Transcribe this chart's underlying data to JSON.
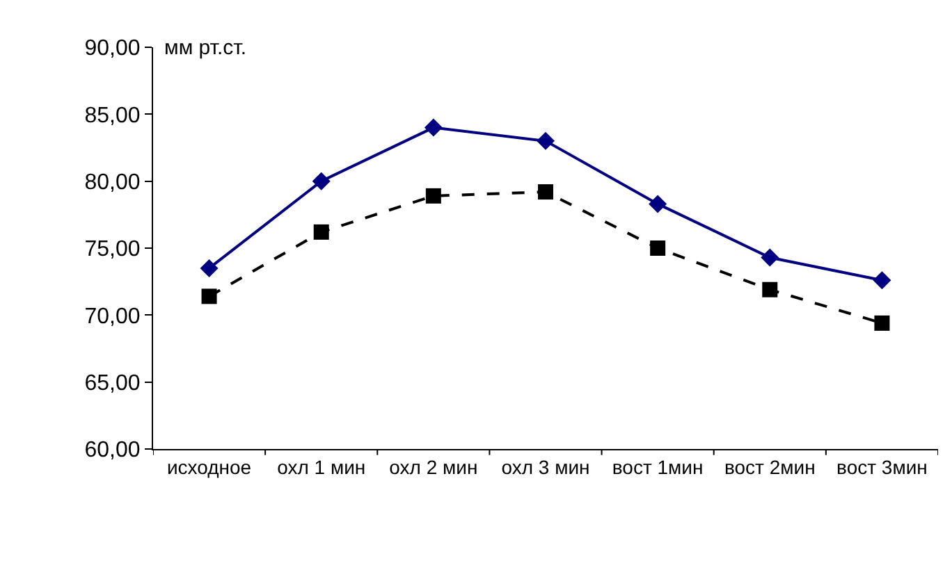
{
  "chart_data": {
    "type": "line",
    "ylabel": "мм рт.ст.",
    "categories": [
      "исходное",
      "охл 1 мин",
      "охл 2 мин",
      "охл 3 мин",
      "вост 1мин",
      "вост 2мин",
      "вост 3мин"
    ],
    "series": [
      {
        "color": "#000080",
        "values": [
          73.5,
          80.0,
          84.0,
          83.0,
          78.3,
          74.3,
          72.6
        ],
        "marker": "diamond",
        "line_style": "solid"
      },
      {
        "color": "#000000",
        "values": [
          71.4,
          76.2,
          78.9,
          79.2,
          75.0,
          71.9,
          69.4
        ],
        "marker": "square",
        "line_style": "dashed"
      }
    ],
    "ylim": [
      60,
      90
    ],
    "yticks": [
      {
        "value": 60,
        "label": "60,00"
      },
      {
        "value": 65,
        "label": "65,00"
      },
      {
        "value": 70,
        "label": "70,00"
      },
      {
        "value": 75,
        "label": "75,00"
      },
      {
        "value": 80,
        "label": "80,00"
      },
      {
        "value": 85,
        "label": "85,00"
      },
      {
        "value": 90,
        "label": "90,00"
      }
    ],
    "tick_labels": [
      "x",
      "y"
    ]
  }
}
